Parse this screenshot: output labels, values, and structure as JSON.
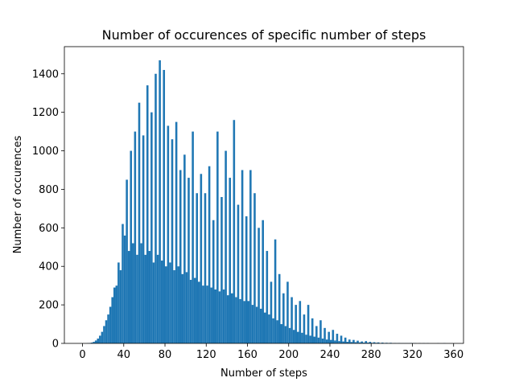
{
  "chart_data": {
    "type": "histogram",
    "title": "Number of occurences of specific number of steps",
    "x_label": "Number of steps",
    "y_label": "Number of occurences",
    "color": "#1f77b4",
    "bins": [
      0,
      2,
      4,
      6,
      8,
      10,
      12,
      14,
      16,
      18,
      20,
      22,
      24,
      26,
      28,
      30,
      32,
      34,
      36,
      38,
      40,
      42,
      44,
      46,
      48,
      50,
      52,
      54,
      56,
      58,
      60,
      62,
      64,
      66,
      68,
      70,
      72,
      74,
      76,
      78,
      80,
      82,
      84,
      86,
      88,
      90,
      92,
      94,
      96,
      98,
      100,
      102,
      104,
      106,
      108,
      110,
      112,
      114,
      116,
      118,
      120,
      122,
      124,
      126,
      128,
      130,
      132,
      134,
      136,
      138,
      140,
      142,
      144,
      146,
      148,
      150,
      152,
      154,
      156,
      158,
      160,
      162,
      164,
      166,
      168,
      170,
      172,
      174,
      176,
      178,
      180,
      182,
      184,
      186,
      188,
      190,
      192,
      194,
      196,
      198,
      200,
      202,
      204,
      206,
      208,
      210,
      212,
      214,
      216,
      218,
      220,
      222,
      224,
      226,
      228,
      230,
      232,
      234,
      236,
      238,
      240,
      242,
      244,
      246,
      248,
      250,
      252,
      254,
      256,
      258,
      260,
      262,
      264,
      266,
      268,
      270,
      272,
      274,
      276,
      278,
      280,
      282,
      284,
      286,
      288,
      290,
      292,
      294,
      296,
      298,
      300,
      302,
      304,
      306,
      308,
      310,
      312,
      314,
      316,
      318,
      320,
      322,
      324,
      326,
      328,
      330,
      332,
      334,
      336,
      338,
      340,
      342,
      344,
      346,
      348,
      350,
      352
    ],
    "values": [
      0,
      0,
      1,
      2,
      4,
      8,
      15,
      25,
      40,
      60,
      90,
      120,
      150,
      190,
      240,
      290,
      300,
      420,
      380,
      620,
      560,
      850,
      480,
      1000,
      520,
      1100,
      460,
      1250,
      520,
      1080,
      460,
      1340,
      480,
      1200,
      420,
      1400,
      460,
      1470,
      430,
      1420,
      400,
      1130,
      420,
      1060,
      380,
      1150,
      400,
      900,
      360,
      980,
      370,
      860,
      330,
      1100,
      340,
      780,
      320,
      880,
      300,
      780,
      300,
      920,
      290,
      640,
      280,
      1100,
      270,
      760,
      280,
      1000,
      250,
      860,
      260,
      1160,
      240,
      720,
      230,
      900,
      220,
      660,
      220,
      900,
      200,
      780,
      190,
      600,
      180,
      640,
      160,
      480,
      150,
      320,
      130,
      540,
      120,
      360,
      100,
      260,
      90,
      320,
      80,
      240,
      70,
      200,
      60,
      220,
      55,
      150,
      45,
      200,
      40,
      130,
      35,
      90,
      30,
      120,
      25,
      80,
      20,
      60,
      18,
      70,
      15,
      50,
      12,
      40,
      10,
      30,
      8,
      20,
      7,
      18,
      6,
      14,
      5,
      10,
      4,
      12,
      4,
      8,
      3,
      6,
      3,
      5,
      2,
      4,
      2,
      3,
      2,
      3,
      1,
      2,
      1,
      2,
      1,
      1,
      1,
      1,
      1,
      2,
      1,
      1,
      0,
      1,
      0,
      1,
      0,
      1,
      0,
      0,
      0,
      0,
      1,
      0,
      0,
      1
    ],
    "xlim": [
      -17.6,
      369.6
    ],
    "ylim": [
      0,
      1541
    ],
    "xticks": [
      0,
      40,
      80,
      120,
      160,
      200,
      240,
      280,
      320,
      360
    ],
    "yticks": [
      0,
      200,
      400,
      600,
      800,
      1000,
      1200,
      1400
    ]
  }
}
